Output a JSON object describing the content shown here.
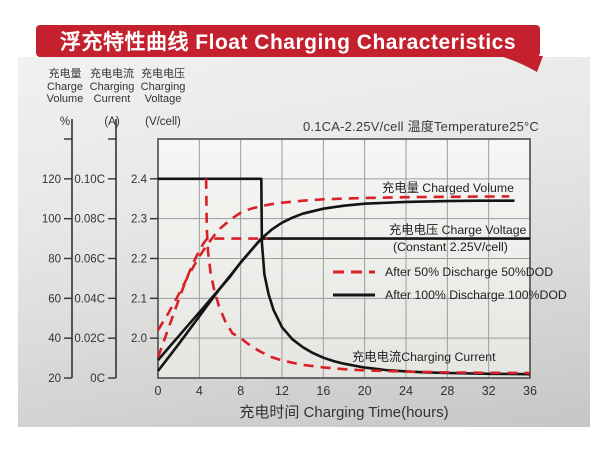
{
  "header": {
    "title": "浮充特性曲线 Float Charging Characteristics"
  },
  "colors": {
    "banner_red": "#c4202e",
    "curve_red": "#d92027",
    "curve_black": "#141414"
  },
  "chart_data": {
    "type": "line",
    "title": "浮充特性曲线 Float Charging Characteristics",
    "condition": "0.1CA-2.25V/cell   温度Temperature25°C",
    "xlabel": "充电时间 Charging Time(hours)",
    "x_range": [
      0,
      36
    ],
    "x_ticks": [
      {
        "label": "0",
        "value": 0
      },
      {
        "label": "4",
        "value": 4
      },
      {
        "label": "8",
        "value": 8
      },
      {
        "label": "12",
        "value": 12
      },
      {
        "label": "16",
        "value": 16
      },
      {
        "label": "20",
        "value": 20
      },
      {
        "label": "24",
        "value": 24
      },
      {
        "label": "28",
        "value": 28
      },
      {
        "label": "32",
        "value": 32
      },
      {
        "label": "36",
        "value": 36
      }
    ],
    "axes": {
      "volume": {
        "label_cn": "充电量",
        "label_en_1": "Charge",
        "label_en_2": "Volume",
        "unit": "%",
        "range": [
          20,
          140
        ],
        "ticks": [
          {
            "label": "",
            "value": 140
          },
          {
            "label": "120",
            "value": 120
          },
          {
            "label": "100",
            "value": 100
          },
          {
            "label": "80",
            "value": 80
          },
          {
            "label": "60",
            "value": 60
          },
          {
            "label": "40",
            "value": 40
          },
          {
            "label": "20",
            "value": 20
          }
        ]
      },
      "current": {
        "label_cn": "充电电流",
        "label_en_1": "Charging",
        "label_en_2": "Current",
        "unit": "(A)",
        "range": [
          0,
          0.12
        ],
        "ticks": [
          {
            "label": "",
            "value": 0.12
          },
          {
            "label": "0.10C",
            "value": 0.1
          },
          {
            "label": "0.08C",
            "value": 0.08
          },
          {
            "label": "0.06C",
            "value": 0.06
          },
          {
            "label": "0.04C",
            "value": 0.04
          },
          {
            "label": "0.02C",
            "value": 0.02
          },
          {
            "label": "0C",
            "value": 0
          }
        ]
      },
      "voltage": {
        "label_cn": "充电电压",
        "label_en_1": "Charging",
        "label_en_2": "Voltage",
        "unit": "(V/cell)",
        "range": [
          1.9,
          2.5
        ],
        "ticks": [
          {
            "label": "2.4",
            "value": 2.4
          },
          {
            "label": "2.3",
            "value": 2.3
          },
          {
            "label": "2.2",
            "value": 2.2
          },
          {
            "label": "2.1",
            "value": 2.1
          },
          {
            "label": "2.0",
            "value": 2.0
          }
        ]
      }
    },
    "annotations": {
      "charged_volume": "充电量 Charged Volume",
      "charge_voltage": "充电电压 Charge Voltage",
      "charge_voltage_sub": "(Constant 2.25V/cell)",
      "charging_current": "充电电流Charging Current"
    },
    "legend": [
      {
        "style": "dashed",
        "color": "#d92027",
        "label": "After 50% Discharge 50%DOD"
      },
      {
        "style": "solid",
        "color": "#141414",
        "label": "After 100%  Discharge 100%DOD"
      }
    ],
    "series": [
      {
        "name": "charge-voltage-100dod",
        "axis": "voltage",
        "style": "solid",
        "color": "#141414",
        "points": [
          [
            0,
            1.945
          ],
          [
            1,
            1.975
          ],
          [
            2,
            2.005
          ],
          [
            3,
            2.035
          ],
          [
            4,
            2.065
          ],
          [
            5,
            2.095
          ],
          [
            6,
            2.125
          ],
          [
            7,
            2.155
          ],
          [
            8,
            2.19
          ],
          [
            9,
            2.22
          ],
          [
            10,
            2.25
          ],
          [
            36,
            2.25
          ]
        ]
      },
      {
        "name": "charged-volume-100dod",
        "axis": "volume",
        "style": "solid",
        "color": "#141414",
        "points": [
          [
            0,
            23.5
          ],
          [
            2,
            37
          ],
          [
            4,
            51
          ],
          [
            6,
            65
          ],
          [
            8,
            78
          ],
          [
            10,
            90
          ],
          [
            11,
            94.5
          ],
          [
            12,
            98
          ],
          [
            13,
            100.5
          ],
          [
            14,
            102.5
          ],
          [
            16,
            105
          ],
          [
            18,
            106.5
          ],
          [
            20,
            107.5
          ],
          [
            24,
            108.4
          ],
          [
            28,
            108.8
          ],
          [
            31,
            109
          ],
          [
            34.5,
            109
          ]
        ]
      },
      {
        "name": "charging-current-100dod",
        "axis": "current",
        "style": "solid",
        "color": "#141414",
        "points": [
          [
            0,
            0.1
          ],
          [
            10,
            0.1
          ],
          [
            10.05,
            0.068
          ],
          [
            10.3,
            0.052
          ],
          [
            10.7,
            0.042
          ],
          [
            11.2,
            0.034
          ],
          [
            12,
            0.0255
          ],
          [
            13,
            0.0195
          ],
          [
            14,
            0.0155
          ],
          [
            15,
            0.0125
          ],
          [
            16,
            0.0102
          ],
          [
            17,
            0.0085
          ],
          [
            18,
            0.0072
          ],
          [
            20,
            0.0052
          ],
          [
            22,
            0.004
          ],
          [
            24,
            0.0033
          ],
          [
            26,
            0.0028
          ],
          [
            28,
            0.0025
          ],
          [
            32,
            0.0021
          ],
          [
            36,
            0.0019
          ]
        ]
      },
      {
        "name": "charged-volume-50dod",
        "axis": "volume",
        "style": "dashed",
        "color": "#d92027",
        "points": [
          [
            0,
            44
          ],
          [
            1,
            52.5
          ],
          [
            2,
            62
          ],
          [
            3,
            72
          ],
          [
            4,
            81
          ],
          [
            4.7,
            86.5
          ],
          [
            5.5,
            92
          ],
          [
            6,
            95
          ],
          [
            7,
            99.5
          ],
          [
            8,
            103
          ],
          [
            9,
            105
          ],
          [
            10,
            106.3
          ],
          [
            11,
            107.3
          ],
          [
            12,
            108
          ],
          [
            14,
            109
          ],
          [
            16,
            109.7
          ],
          [
            18,
            110.1
          ],
          [
            20,
            110.4
          ],
          [
            24,
            110.8
          ],
          [
            28,
            111
          ],
          [
            31,
            111.1
          ],
          [
            34,
            111.2
          ]
        ]
      },
      {
        "name": "charge-voltage-50dod",
        "axis": "voltage",
        "style": "dashed",
        "color": "#d92027",
        "points": [
          [
            0,
            1.952
          ],
          [
            0.5,
            1.988
          ],
          [
            1,
            2.024
          ],
          [
            1.5,
            2.06
          ],
          [
            2,
            2.096
          ],
          [
            2.5,
            2.131
          ],
          [
            3,
            2.164
          ],
          [
            3.5,
            2.194
          ],
          [
            4,
            2.22
          ],
          [
            4.4,
            2.238
          ],
          [
            4.75,
            2.25
          ],
          [
            10.6,
            2.25
          ]
        ]
      },
      {
        "name": "charging-current-50dod",
        "axis": "current",
        "style": "dashed",
        "color": "#d92027",
        "points": [
          [
            4.65,
            0.1
          ],
          [
            4.72,
            0.075
          ],
          [
            4.85,
            0.063
          ],
          [
            5.1,
            0.0525
          ],
          [
            5.45,
            0.044
          ],
          [
            5.9,
            0.036
          ],
          [
            6.5,
            0.0285
          ],
          [
            7.2,
            0.0225
          ],
          [
            8,
            0.02
          ],
          [
            9,
            0.016
          ],
          [
            10,
            0.013
          ],
          [
            11,
            0.0105
          ],
          [
            12,
            0.0088
          ],
          [
            14,
            0.0066
          ],
          [
            16,
            0.0053
          ],
          [
            18,
            0.0044
          ],
          [
            20,
            0.0038
          ],
          [
            24,
            0.0032
          ],
          [
            28,
            0.0028
          ],
          [
            32,
            0.0026
          ],
          [
            36,
            0.0025
          ]
        ]
      }
    ]
  }
}
